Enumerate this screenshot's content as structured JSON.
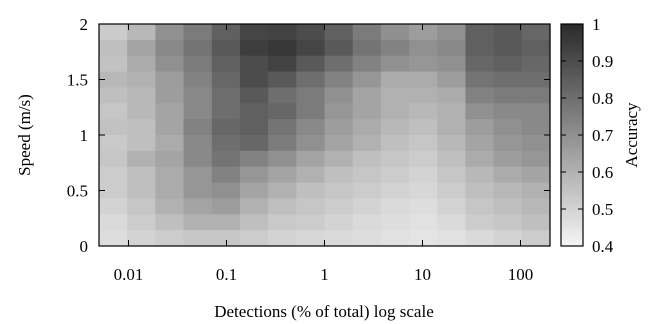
{
  "chart_data": {
    "type": "heatmap",
    "xlabel": "Detections (% of total) log scale",
    "ylabel": "Speed (m/s)",
    "colorbar_label": "Accuracy",
    "x_scale": "log",
    "xlim": [
      0.005,
      200
    ],
    "ylim": [
      0,
      2
    ],
    "x_ticks": [
      "0.01",
      "0.1",
      "1",
      "10",
      "100"
    ],
    "y_ticks": [
      "0",
      "0.5",
      "1",
      "1.5",
      "2"
    ],
    "colorbar_ticks": [
      "0.4",
      "0.5",
      "0.6",
      "0.7",
      "0.8",
      "0.9",
      "1"
    ],
    "color_range": [
      0.4,
      1.0
    ],
    "colormap": "grayscale: low=#f5f5f5, high=#2a2a2a",
    "x_bins_log10": [
      -2.3,
      -2.0,
      -1.7,
      -1.4,
      -1.1,
      -0.8,
      -0.5,
      -0.2,
      0.1,
      0.4,
      0.7,
      1.0,
      1.3,
      1.6,
      1.9,
      2.2
    ],
    "speed_bins": [
      2.0,
      1.85,
      1.7,
      1.55,
      1.4,
      1.25,
      1.1,
      0.95,
      0.8,
      0.65,
      0.5,
      0.35,
      0.2,
      0.05
    ],
    "accuracy_grid": [
      [
        0.52,
        0.58,
        0.7,
        0.76,
        0.84,
        0.92,
        0.93,
        0.9,
        0.84,
        0.76,
        0.7,
        0.66,
        0.7,
        0.84,
        0.86,
        0.82
      ],
      [
        0.56,
        0.64,
        0.72,
        0.78,
        0.86,
        0.94,
        0.96,
        0.92,
        0.86,
        0.78,
        0.74,
        0.7,
        0.72,
        0.84,
        0.86,
        0.84
      ],
      [
        0.55,
        0.62,
        0.7,
        0.76,
        0.84,
        0.9,
        0.93,
        0.86,
        0.8,
        0.74,
        0.7,
        0.68,
        0.7,
        0.82,
        0.84,
        0.82
      ],
      [
        0.58,
        0.6,
        0.66,
        0.74,
        0.82,
        0.9,
        0.86,
        0.8,
        0.74,
        0.68,
        0.62,
        0.62,
        0.66,
        0.78,
        0.8,
        0.8
      ],
      [
        0.56,
        0.58,
        0.66,
        0.72,
        0.8,
        0.86,
        0.8,
        0.76,
        0.7,
        0.64,
        0.6,
        0.6,
        0.62,
        0.74,
        0.76,
        0.76
      ],
      [
        0.54,
        0.58,
        0.64,
        0.72,
        0.8,
        0.84,
        0.82,
        0.76,
        0.68,
        0.64,
        0.6,
        0.58,
        0.6,
        0.7,
        0.72,
        0.72
      ],
      [
        0.55,
        0.56,
        0.64,
        0.74,
        0.82,
        0.84,
        0.78,
        0.72,
        0.66,
        0.62,
        0.58,
        0.56,
        0.6,
        0.66,
        0.7,
        0.72
      ],
      [
        0.53,
        0.56,
        0.62,
        0.72,
        0.8,
        0.82,
        0.76,
        0.7,
        0.64,
        0.6,
        0.56,
        0.54,
        0.58,
        0.64,
        0.68,
        0.7
      ],
      [
        0.54,
        0.6,
        0.64,
        0.72,
        0.78,
        0.74,
        0.7,
        0.64,
        0.6,
        0.56,
        0.54,
        0.52,
        0.56,
        0.62,
        0.66,
        0.68
      ],
      [
        0.52,
        0.56,
        0.62,
        0.68,
        0.74,
        0.68,
        0.64,
        0.6,
        0.56,
        0.54,
        0.52,
        0.5,
        0.54,
        0.58,
        0.62,
        0.64
      ],
      [
        0.52,
        0.56,
        0.62,
        0.68,
        0.7,
        0.64,
        0.6,
        0.56,
        0.54,
        0.52,
        0.5,
        0.49,
        0.52,
        0.56,
        0.58,
        0.6
      ],
      [
        0.5,
        0.54,
        0.6,
        0.64,
        0.66,
        0.6,
        0.56,
        0.54,
        0.52,
        0.5,
        0.48,
        0.47,
        0.5,
        0.54,
        0.56,
        0.58
      ],
      [
        0.48,
        0.52,
        0.56,
        0.6,
        0.6,
        0.56,
        0.53,
        0.52,
        0.5,
        0.48,
        0.47,
        0.46,
        0.48,
        0.52,
        0.54,
        0.56
      ],
      [
        0.47,
        0.5,
        0.52,
        0.54,
        0.54,
        0.52,
        0.5,
        0.49,
        0.48,
        0.47,
        0.46,
        0.45,
        0.46,
        0.48,
        0.5,
        0.52
      ]
    ]
  }
}
